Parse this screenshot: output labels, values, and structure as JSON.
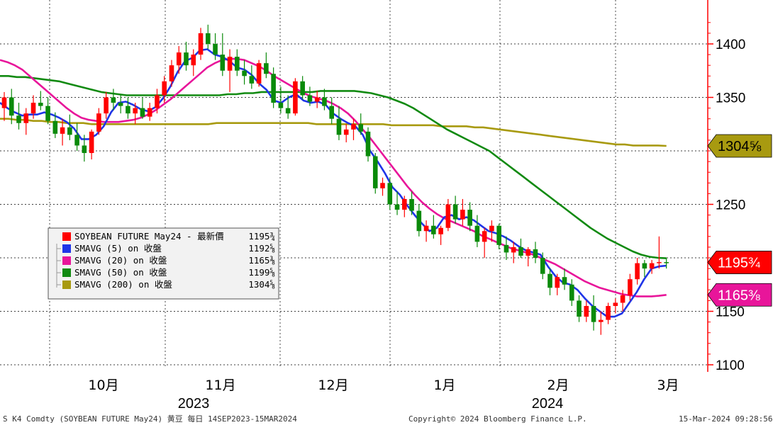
{
  "chart_data": {
    "type": "candlestick",
    "title": "",
    "ylim": [
      1095,
      1430
    ],
    "y_ticks": [
      "1400",
      "1350",
      "1250",
      "1150",
      "1100"
    ],
    "x_months": [
      "10月",
      "11月",
      "12月",
      "1月",
      "2月",
      "3月"
    ],
    "x_years": [
      "2023",
      "2024"
    ],
    "grid": true,
    "legend_position": "bottom-left",
    "legend": [
      {
        "label": "SOYBEAN FUTURE May24 - 最新價",
        "value": "1195¾",
        "color": "#ff0000"
      },
      {
        "label": "SMAVG (5)  on 收盤",
        "value": "1192⅝",
        "color": "#1f35e8"
      },
      {
        "label": "SMAVG (20)  on 收盤",
        "value": "1165⅜",
        "color": "#e8159a"
      },
      {
        "label": "SMAVG (50)  on 收盤",
        "value": "1199⅝",
        "color": "#118a11"
      },
      {
        "label": "SMAVG (200)  on 收盤",
        "value": "1304⅝",
        "color": "#a89a10"
      }
    ],
    "price_tags": [
      {
        "value": 1304.625,
        "label": "1304⅝",
        "bg": "#a89a10",
        "fg": "#000000"
      },
      {
        "value": 1195.75,
        "label": "1195¾",
        "bg": "#ff0000",
        "fg": "#ffffff"
      },
      {
        "value": 1165.375,
        "label": "1165⅜",
        "bg": "#e8159a",
        "fg": "#ffffff"
      }
    ],
    "candles": [
      [
        1340,
        1355,
        1328,
        1350
      ],
      [
        1350,
        1358,
        1325,
        1333
      ],
      [
        1333,
        1345,
        1320,
        1326
      ],
      [
        1326,
        1340,
        1315,
        1335
      ],
      [
        1335,
        1352,
        1330,
        1345
      ],
      [
        1345,
        1356,
        1338,
        1342
      ],
      [
        1342,
        1350,
        1325,
        1328
      ],
      [
        1328,
        1336,
        1312,
        1316
      ],
      [
        1316,
        1330,
        1305,
        1322
      ],
      [
        1322,
        1334,
        1310,
        1315
      ],
      [
        1315,
        1326,
        1300,
        1305
      ],
      [
        1305,
        1315,
        1290,
        1298
      ],
      [
        1298,
        1320,
        1292,
        1318
      ],
      [
        1318,
        1340,
        1315,
        1335
      ],
      [
        1335,
        1355,
        1330,
        1350
      ],
      [
        1350,
        1358,
        1338,
        1345
      ],
      [
        1345,
        1352,
        1335,
        1342
      ],
      [
        1342,
        1350,
        1330,
        1335
      ],
      [
        1335,
        1345,
        1325,
        1340
      ],
      [
        1340,
        1350,
        1330,
        1332
      ],
      [
        1332,
        1345,
        1328,
        1340
      ],
      [
        1340,
        1358,
        1335,
        1352
      ],
      [
        1352,
        1370,
        1345,
        1365
      ],
      [
        1365,
        1385,
        1360,
        1380
      ],
      [
        1380,
        1398,
        1372,
        1392
      ],
      [
        1392,
        1402,
        1375,
        1380
      ],
      [
        1380,
        1395,
        1370,
        1390
      ],
      [
        1390,
        1415,
        1385,
        1410
      ],
      [
        1410,
        1418,
        1395,
        1400
      ],
      [
        1400,
        1410,
        1385,
        1390
      ],
      [
        1390,
        1410,
        1370,
        1375
      ],
      [
        1375,
        1395,
        1355,
        1388
      ],
      [
        1388,
        1395,
        1370,
        1375
      ],
      [
        1375,
        1385,
        1362,
        1370
      ],
      [
        1370,
        1380,
        1358,
        1363
      ],
      [
        1363,
        1385,
        1360,
        1382
      ],
      [
        1382,
        1392,
        1368,
        1372
      ],
      [
        1372,
        1378,
        1340,
        1345
      ],
      [
        1345,
        1360,
        1335,
        1340
      ],
      [
        1340,
        1352,
        1330,
        1335
      ],
      [
        1335,
        1368,
        1333,
        1365
      ],
      [
        1365,
        1370,
        1348,
        1352
      ],
      [
        1352,
        1360,
        1342,
        1346
      ],
      [
        1346,
        1356,
        1340,
        1350
      ],
      [
        1350,
        1358,
        1338,
        1342
      ],
      [
        1342,
        1350,
        1325,
        1330
      ],
      [
        1330,
        1342,
        1310,
        1315
      ],
      [
        1315,
        1325,
        1308,
        1320
      ],
      [
        1320,
        1330,
        1310,
        1325
      ],
      [
        1325,
        1335,
        1315,
        1318
      ],
      [
        1318,
        1322,
        1290,
        1295
      ],
      [
        1295,
        1298,
        1260,
        1265
      ],
      [
        1265,
        1275,
        1258,
        1270
      ],
      [
        1270,
        1275,
        1245,
        1250
      ],
      [
        1250,
        1262,
        1240,
        1245
      ],
      [
        1245,
        1258,
        1238,
        1255
      ],
      [
        1255,
        1262,
        1240,
        1244
      ],
      [
        1244,
        1250,
        1220,
        1225
      ],
      [
        1225,
        1235,
        1215,
        1230
      ],
      [
        1230,
        1240,
        1218,
        1222
      ],
      [
        1222,
        1230,
        1212,
        1228
      ],
      [
        1228,
        1255,
        1225,
        1250
      ],
      [
        1250,
        1258,
        1232,
        1236
      ],
      [
        1236,
        1255,
        1230,
        1245
      ],
      [
        1245,
        1252,
        1225,
        1230
      ],
      [
        1230,
        1240,
        1210,
        1215
      ],
      [
        1215,
        1228,
        1200,
        1225
      ],
      [
        1225,
        1235,
        1215,
        1230
      ],
      [
        1230,
        1232,
        1208,
        1212
      ],
      [
        1212,
        1220,
        1198,
        1205
      ],
      [
        1205,
        1215,
        1195,
        1210
      ],
      [
        1210,
        1218,
        1200,
        1202
      ],
      [
        1202,
        1210,
        1192,
        1208
      ],
      [
        1208,
        1215,
        1195,
        1200
      ],
      [
        1200,
        1205,
        1180,
        1185
      ],
      [
        1185,
        1190,
        1165,
        1172
      ],
      [
        1172,
        1185,
        1165,
        1182
      ],
      [
        1182,
        1190,
        1170,
        1175
      ],
      [
        1175,
        1180,
        1155,
        1160
      ],
      [
        1160,
        1165,
        1140,
        1145
      ],
      [
        1145,
        1160,
        1140,
        1155
      ],
      [
        1155,
        1165,
        1132,
        1140
      ],
      [
        1140,
        1150,
        1128,
        1142
      ],
      [
        1142,
        1158,
        1138,
        1155
      ],
      [
        1155,
        1162,
        1148,
        1158
      ],
      [
        1158,
        1170,
        1150,
        1165
      ],
      [
        1165,
        1185,
        1160,
        1180
      ],
      [
        1180,
        1200,
        1175,
        1195
      ],
      [
        1195,
        1198,
        1182,
        1190
      ],
      [
        1190,
        1198,
        1185,
        1195
      ],
      [
        1195,
        1220,
        1190,
        1196
      ],
      [
        1196,
        1200,
        1190,
        1195.75
      ]
    ],
    "sma": {
      "sma5": [
        1345,
        1340,
        1336,
        1333,
        1334,
        1334,
        1336,
        1334,
        1331,
        1327,
        1321,
        1311,
        1311,
        1315,
        1323,
        1336,
        1345,
        1346,
        1343,
        1339,
        1337,
        1341,
        1349,
        1360,
        1374,
        1384,
        1387,
        1394,
        1395,
        1390,
        1388,
        1384,
        1378,
        1376,
        1371,
        1363,
        1357,
        1347,
        1345,
        1350,
        1353,
        1347,
        1345,
        1346,
        1343,
        1335,
        1330,
        1326,
        1323,
        1315,
        1300,
        1290,
        1279,
        1266,
        1259,
        1249,
        1240,
        1232,
        1225,
        1228,
        1238,
        1240,
        1236,
        1238,
        1235,
        1230,
        1225,
        1223,
        1220,
        1216,
        1211,
        1207,
        1205,
        1203,
        1192,
        1183,
        1177,
        1175,
        1170,
        1162,
        1155,
        1150,
        1145,
        1145,
        1148,
        1158,
        1168,
        1180,
        1190,
        1192,
        1192.625
      ],
      "sma20": [
        1385,
        1383,
        1380,
        1376,
        1370,
        1364,
        1358,
        1352,
        1346,
        1340,
        1335,
        1331,
        1329,
        1328,
        1327,
        1327,
        1327,
        1328,
        1329,
        1331,
        1334,
        1338,
        1343,
        1348,
        1354,
        1360,
        1366,
        1372,
        1378,
        1382,
        1385,
        1386,
        1386,
        1385,
        1382,
        1379,
        1375,
        1370,
        1366,
        1362,
        1358,
        1354,
        1351,
        1349,
        1347,
        1344,
        1340,
        1335,
        1328,
        1320,
        1312,
        1303,
        1294,
        1285,
        1276,
        1267,
        1259,
        1252,
        1246,
        1241,
        1237,
        1234,
        1231,
        1228,
        1225,
        1221,
        1218,
        1215,
        1212,
        1209,
        1207,
        1205,
        1203,
        1200,
        1197,
        1194,
        1190,
        1186,
        1182,
        1178,
        1175,
        1172,
        1170,
        1168,
        1166,
        1165,
        1164,
        1164,
        1164,
        1164.5,
        1165.375
      ],
      "sma50": [
        1370,
        1370,
        1369,
        1369,
        1368,
        1367,
        1366,
        1365,
        1363,
        1361,
        1359,
        1357,
        1355,
        1354,
        1353,
        1352,
        1352,
        1352,
        1352,
        1352,
        1352,
        1352,
        1352,
        1352,
        1352,
        1352,
        1352,
        1353,
        1353,
        1354,
        1354,
        1355,
        1355,
        1355,
        1355,
        1355,
        1355,
        1355,
        1356,
        1356,
        1356,
        1356,
        1356,
        1355,
        1354,
        1352,
        1350,
        1347,
        1344,
        1340,
        1335,
        1330,
        1325,
        1320,
        1316,
        1312,
        1308,
        1304,
        1300,
        1294,
        1288,
        1282,
        1276,
        1270,
        1264,
        1258,
        1252,
        1246,
        1240,
        1234,
        1228,
        1223,
        1218,
        1214,
        1210,
        1206,
        1203,
        1201,
        1200,
        1199.625
      ],
      "sma200": [
        1330,
        1330,
        1329,
        1329,
        1328,
        1328,
        1327,
        1327,
        1326,
        1326,
        1326,
        1325,
        1325,
        1325,
        1325,
        1325,
        1325,
        1325,
        1325,
        1325,
        1325,
        1325,
        1325,
        1325,
        1325,
        1325,
        1326,
        1326,
        1326,
        1326,
        1326,
        1326,
        1326,
        1326,
        1326,
        1326,
        1326,
        1326,
        1325,
        1325,
        1325,
        1325,
        1325,
        1325,
        1325,
        1325,
        1325,
        1324,
        1324,
        1324,
        1324,
        1324,
        1324,
        1323,
        1323,
        1323,
        1323,
        1322,
        1322,
        1321,
        1320,
        1319,
        1318,
        1317,
        1316,
        1315,
        1314,
        1313,
        1312,
        1311,
        1310,
        1309,
        1308,
        1307,
        1306,
        1306,
        1305,
        1305,
        1305,
        1305,
        1304.625
      ]
    }
  },
  "footer": {
    "left": "S K4 Comdty (SOYBEAN FUTURE    May24) 黄豆  每日 14SEP2023-15MAR2024",
    "center": "Copyright© 2024 Bloomberg Finance L.P.",
    "right": "15-Mar-2024 09:28:56"
  }
}
